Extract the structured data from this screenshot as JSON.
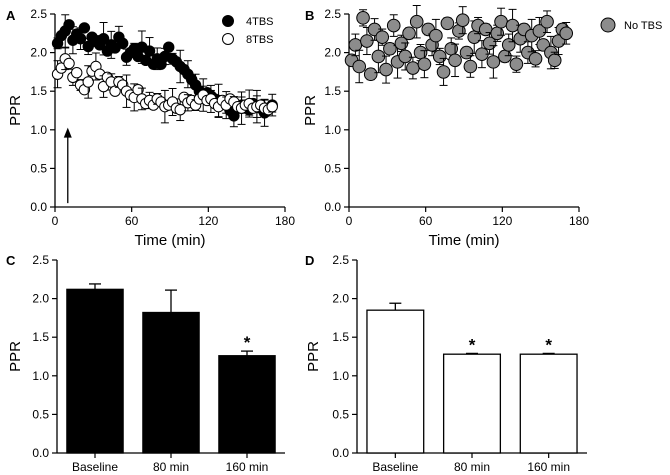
{
  "figure": {
    "colors": {
      "filled": "#000000",
      "open": "#ffffff",
      "grey": "#8c8c8c",
      "axis": "#000000"
    }
  },
  "chart_data": [
    {
      "panel": "A",
      "type": "scatter",
      "title": "",
      "xlabel": "Time (min)",
      "ylabel": "PPR",
      "xlim": [
        0,
        180
      ],
      "ylim": [
        0.0,
        2.5
      ],
      "xticks": [
        "0",
        "60",
        "120",
        "180"
      ],
      "yticks": [
        "0.0",
        "0.5",
        "1.0",
        "1.5",
        "2.0",
        "2.5"
      ],
      "legend_position": "top-right",
      "annotation": "upward arrow at ~10 min (stimulation)",
      "arrow_x": 10,
      "series": [
        {
          "name": "4TBS",
          "marker": "filled-circle",
          "x": [
            2,
            5,
            8,
            11,
            14,
            17,
            20,
            23,
            26,
            29,
            32,
            35,
            38,
            41,
            44,
            47,
            50,
            53,
            56,
            59,
            62,
            65,
            68,
            71,
            74,
            77,
            80,
            83,
            86,
            89,
            92,
            95,
            98,
            101,
            104,
            107,
            110,
            113,
            116,
            119,
            122,
            125,
            128,
            131,
            134,
            137,
            140,
            143,
            146,
            149,
            152,
            155,
            158,
            161,
            164,
            167,
            170
          ],
          "y": [
            2.12,
            2.22,
            2.28,
            2.36,
            2.16,
            2.24,
            2.18,
            2.32,
            2.08,
            2.2,
            2.15,
            2.1,
            2.18,
            2.02,
            2.1,
            2.06,
            2.2,
            2.12,
            1.94,
            2.0,
            2.05,
            1.95,
            2.07,
            1.9,
            2.02,
            1.85,
            1.92,
            1.85,
            1.95,
            2.07,
            1.92,
            1.88,
            1.82,
            1.78,
            1.72,
            1.65,
            1.58,
            1.5,
            1.46,
            1.48,
            1.44,
            1.4,
            1.38,
            1.36,
            1.32,
            1.25,
            1.18,
            1.28,
            1.32,
            1.3,
            1.26,
            1.34,
            1.3,
            1.28,
            1.22,
            1.28,
            1.32
          ]
        },
        {
          "name": "8TBS",
          "marker": "open-circle",
          "x": [
            2,
            5,
            8,
            11,
            14,
            17,
            20,
            23,
            26,
            29,
            32,
            35,
            38,
            41,
            44,
            47,
            50,
            53,
            56,
            59,
            62,
            65,
            68,
            71,
            74,
            77,
            80,
            83,
            86,
            89,
            92,
            95,
            98,
            101,
            104,
            107,
            110,
            113,
            116,
            119,
            122,
            125,
            128,
            131,
            134,
            137,
            140,
            143,
            146,
            149,
            152,
            155,
            158,
            161,
            164,
            167,
            170
          ],
          "y": [
            1.72,
            1.8,
            1.92,
            1.86,
            1.68,
            1.74,
            1.58,
            1.52,
            1.62,
            1.76,
            1.82,
            1.72,
            1.56,
            1.68,
            1.62,
            1.5,
            1.62,
            1.58,
            1.5,
            1.45,
            1.42,
            1.52,
            1.4,
            1.34,
            1.38,
            1.32,
            1.4,
            1.36,
            1.3,
            1.32,
            1.36,
            1.28,
            1.26,
            1.42,
            1.35,
            1.38,
            1.32,
            1.4,
            1.45,
            1.38,
            1.4,
            1.34,
            1.3,
            1.38,
            1.32,
            1.4,
            1.36,
            1.3,
            1.28,
            1.32,
            1.34,
            1.28,
            1.3,
            1.32,
            1.28,
            1.26,
            1.3
          ]
        }
      ]
    },
    {
      "panel": "B",
      "type": "scatter",
      "title": "",
      "xlabel": "Time (min)",
      "ylabel": "PPR",
      "xlim": [
        0,
        180
      ],
      "ylim": [
        0.0,
        2.5
      ],
      "xticks": [
        "0",
        "60",
        "120",
        "180"
      ],
      "yticks": [
        "0.0",
        "0.5",
        "1.0",
        "1.5",
        "2.0",
        "2.5"
      ],
      "legend_position": "outside-right",
      "series": [
        {
          "name": "No TBS",
          "marker": "grey-circle",
          "x": [
            2,
            5,
            8,
            11,
            14,
            17,
            20,
            23,
            26,
            29,
            32,
            35,
            38,
            41,
            44,
            47,
            50,
            53,
            56,
            59,
            62,
            65,
            68,
            71,
            74,
            77,
            80,
            83,
            86,
            89,
            92,
            95,
            98,
            101,
            104,
            107,
            110,
            113,
            116,
            119,
            122,
            125,
            128,
            131,
            134,
            137,
            140,
            143,
            146,
            149,
            152,
            155,
            158,
            161,
            164,
            167,
            170
          ],
          "y": [
            1.9,
            2.1,
            1.82,
            2.45,
            2.15,
            1.72,
            2.3,
            1.95,
            2.2,
            1.78,
            2.05,
            2.35,
            1.88,
            2.12,
            1.95,
            2.25,
            1.8,
            2.4,
            2.0,
            1.85,
            2.3,
            2.1,
            2.22,
            1.95,
            1.75,
            2.38,
            2.05,
            1.9,
            2.28,
            2.42,
            2.0,
            1.82,
            2.2,
            2.35,
            1.98,
            2.3,
            2.12,
            1.88,
            2.25,
            2.4,
            1.95,
            2.1,
            2.35,
            1.85,
            2.18,
            2.3,
            2.0,
            2.22,
            1.92,
            2.28,
            2.1,
            2.4,
            2.0,
            1.9,
            2.15,
            2.3,
            2.25
          ]
        }
      ]
    },
    {
      "panel": "C",
      "type": "bar",
      "title": "",
      "xlabel": "",
      "ylabel": "PPR",
      "ylim": [
        0.0,
        2.5
      ],
      "yticks": [
        "0.0",
        "0.5",
        "1.0",
        "1.5",
        "2.0",
        "2.5"
      ],
      "categories": [
        "Baseline",
        "80 min",
        "160 min"
      ],
      "values": [
        2.12,
        1.82,
        1.26
      ],
      "errors": [
        0.07,
        0.29,
        0.06
      ],
      "fill": "filled",
      "significance": [
        "",
        "",
        "*"
      ]
    },
    {
      "panel": "D",
      "type": "bar",
      "title": "",
      "xlabel": "",
      "ylabel": "PPR",
      "ylim": [
        0.0,
        2.5
      ],
      "yticks": [
        "0.0",
        "0.5",
        "1.0",
        "1.5",
        "2.0",
        "2.5"
      ],
      "categories": [
        "Baseline",
        "80 min",
        "160 min"
      ],
      "values": [
        1.85,
        1.28,
        1.28
      ],
      "errors": [
        0.09,
        0.01,
        0.01
      ],
      "fill": "open",
      "significance": [
        "",
        "*",
        "*"
      ]
    }
  ]
}
